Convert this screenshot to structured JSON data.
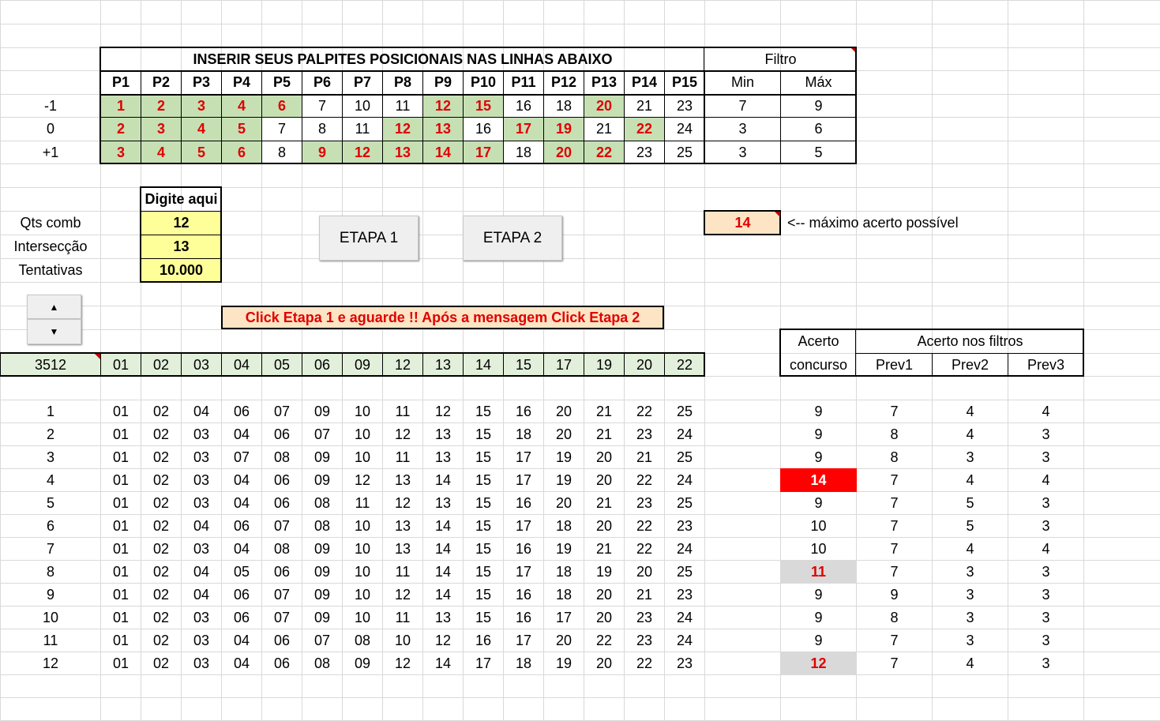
{
  "palpites": {
    "title": "INSERIR SEUS PALPITES POSICIONAIS NAS LINHAS ABAIXO",
    "headers": [
      "P1",
      "P2",
      "P3",
      "P4",
      "P5",
      "P6",
      "P7",
      "P8",
      "P9",
      "P10",
      "P11",
      "P12",
      "P13",
      "P14",
      "P15"
    ],
    "rows": [
      {
        "label": "-1",
        "values": [
          "1",
          "2",
          "3",
          "4",
          "6",
          "7",
          "10",
          "11",
          "12",
          "15",
          "16",
          "18",
          "20",
          "21",
          "23"
        ],
        "highlight": [
          1,
          1,
          1,
          1,
          1,
          0,
          0,
          0,
          1,
          1,
          0,
          0,
          1,
          0,
          0
        ],
        "min": "7",
        "max": "9"
      },
      {
        "label": "0",
        "values": [
          "2",
          "3",
          "4",
          "5",
          "7",
          "8",
          "11",
          "12",
          "13",
          "16",
          "17",
          "19",
          "21",
          "22",
          "24"
        ],
        "highlight": [
          1,
          1,
          1,
          1,
          0,
          0,
          0,
          1,
          1,
          0,
          1,
          1,
          0,
          1,
          0
        ],
        "min": "3",
        "max": "6"
      },
      {
        "label": "+1",
        "values": [
          "3",
          "4",
          "5",
          "6",
          "8",
          "9",
          "12",
          "13",
          "14",
          "17",
          "18",
          "20",
          "22",
          "23",
          "25"
        ],
        "highlight": [
          1,
          1,
          1,
          1,
          0,
          1,
          1,
          1,
          1,
          1,
          0,
          1,
          1,
          0,
          0
        ],
        "min": "3",
        "max": "5"
      }
    ],
    "filtro_title": "Filtro",
    "min_label": "Min",
    "max_label": "Máx"
  },
  "inputs": {
    "header": "Digite aqui",
    "fields": [
      {
        "label": "Qts comb",
        "value": "12"
      },
      {
        "label": "Intersecção",
        "value": "13"
      },
      {
        "label": "Tentativas",
        "value": "10.000"
      }
    ]
  },
  "buttons": {
    "etapa1": "ETAPA 1",
    "etapa2": "ETAPA 2",
    "spin_up": "▲",
    "spin_down": "▼"
  },
  "max_acerto": {
    "value": "14",
    "label": "<--  máximo acerto possível"
  },
  "message": "Click Etapa 1 e aguarde !! Após a mensagem Click Etapa 2",
  "concurso": {
    "number": "3512",
    "numbers": [
      "01",
      "02",
      "03",
      "04",
      "05",
      "06",
      "09",
      "12",
      "13",
      "14",
      "15",
      "17",
      "19",
      "20",
      "22"
    ]
  },
  "resultados_header": {
    "acerto1": "Acerto",
    "acerto2": "concurso",
    "filtros": "Acerto nos filtros",
    "prev": [
      "Prev1",
      "Prev2",
      "Prev3"
    ]
  },
  "combinacoes": [
    {
      "n": "1",
      "nums": [
        "01",
        "02",
        "04",
        "06",
        "07",
        "09",
        "10",
        "11",
        "12",
        "15",
        "16",
        "20",
        "21",
        "22",
        "25"
      ],
      "acerto": "9",
      "style": "",
      "prev": [
        "7",
        "4",
        "4"
      ]
    },
    {
      "n": "2",
      "nums": [
        "01",
        "02",
        "03",
        "04",
        "06",
        "07",
        "10",
        "12",
        "13",
        "15",
        "18",
        "20",
        "21",
        "23",
        "24"
      ],
      "acerto": "9",
      "style": "",
      "prev": [
        "8",
        "4",
        "3"
      ]
    },
    {
      "n": "3",
      "nums": [
        "01",
        "02",
        "03",
        "07",
        "08",
        "09",
        "10",
        "11",
        "13",
        "15",
        "17",
        "19",
        "20",
        "21",
        "25"
      ],
      "acerto": "9",
      "style": "",
      "prev": [
        "8",
        "3",
        "3"
      ]
    },
    {
      "n": "4",
      "nums": [
        "01",
        "02",
        "03",
        "04",
        "06",
        "09",
        "12",
        "13",
        "14",
        "15",
        "17",
        "19",
        "20",
        "22",
        "24"
      ],
      "acerto": "14",
      "style": "hit",
      "prev": [
        "7",
        "4",
        "4"
      ]
    },
    {
      "n": "5",
      "nums": [
        "01",
        "02",
        "03",
        "04",
        "06",
        "08",
        "11",
        "12",
        "13",
        "15",
        "16",
        "20",
        "21",
        "23",
        "25"
      ],
      "acerto": "9",
      "style": "",
      "prev": [
        "7",
        "5",
        "3"
      ]
    },
    {
      "n": "6",
      "nums": [
        "01",
        "02",
        "04",
        "06",
        "07",
        "08",
        "10",
        "13",
        "14",
        "15",
        "17",
        "18",
        "20",
        "22",
        "23"
      ],
      "acerto": "10",
      "style": "",
      "prev": [
        "7",
        "5",
        "3"
      ]
    },
    {
      "n": "7",
      "nums": [
        "01",
        "02",
        "03",
        "04",
        "08",
        "09",
        "10",
        "13",
        "14",
        "15",
        "16",
        "19",
        "21",
        "22",
        "24"
      ],
      "acerto": "10",
      "style": "",
      "prev": [
        "7",
        "4",
        "4"
      ]
    },
    {
      "n": "8",
      "nums": [
        "01",
        "02",
        "04",
        "05",
        "06",
        "09",
        "10",
        "11",
        "14",
        "15",
        "17",
        "18",
        "19",
        "20",
        "25"
      ],
      "acerto": "11",
      "style": "grey",
      "prev": [
        "7",
        "3",
        "3"
      ]
    },
    {
      "n": "9",
      "nums": [
        "01",
        "02",
        "04",
        "06",
        "07",
        "09",
        "10",
        "12",
        "14",
        "15",
        "16",
        "18",
        "20",
        "21",
        "23"
      ],
      "acerto": "9",
      "style": "",
      "prev": [
        "9",
        "3",
        "3"
      ]
    },
    {
      "n": "10",
      "nums": [
        "01",
        "02",
        "03",
        "06",
        "07",
        "09",
        "10",
        "11",
        "13",
        "15",
        "16",
        "17",
        "20",
        "23",
        "24"
      ],
      "acerto": "9",
      "style": "",
      "prev": [
        "8",
        "3",
        "3"
      ]
    },
    {
      "n": "11",
      "nums": [
        "01",
        "02",
        "03",
        "04",
        "06",
        "07",
        "08",
        "10",
        "12",
        "16",
        "17",
        "20",
        "22",
        "23",
        "24"
      ],
      "acerto": "9",
      "style": "",
      "prev": [
        "7",
        "3",
        "3"
      ]
    },
    {
      "n": "12",
      "nums": [
        "01",
        "02",
        "03",
        "04",
        "06",
        "08",
        "09",
        "12",
        "14",
        "17",
        "18",
        "19",
        "20",
        "22",
        "23"
      ],
      "acerto": "12",
      "style": "grey",
      "prev": [
        "7",
        "4",
        "3"
      ]
    }
  ]
}
